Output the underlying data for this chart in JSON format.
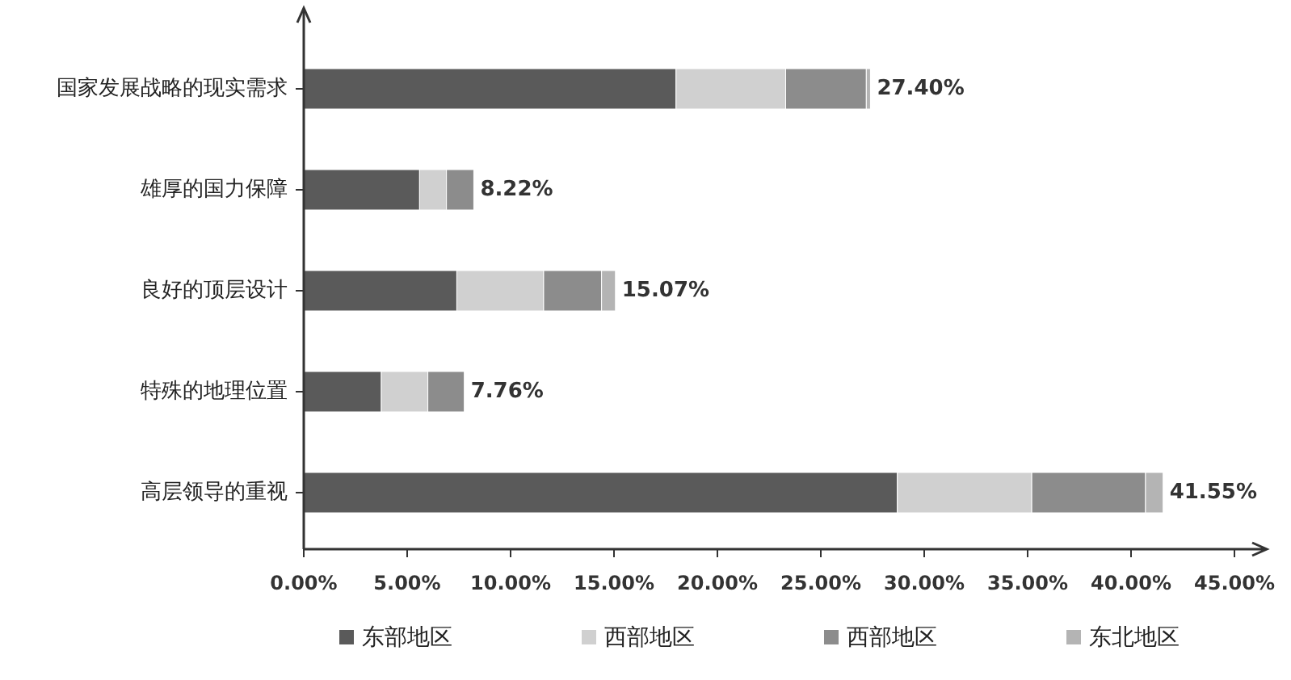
{
  "chart_data": {
    "type": "bar",
    "orientation": "horizontal",
    "stacked": true,
    "categories": [
      "国家发展战略的现实需求",
      "雄厚的国力保障",
      "良好的顶层设计",
      "特殊的地理位置",
      "高层领导的重视"
    ],
    "series": [
      {
        "name": "东部地区",
        "color": "#5a5a5a",
        "values": [
          18.0,
          5.6,
          7.4,
          3.75,
          28.7
        ]
      },
      {
        "name": "西部地区",
        "color": "#d0d0d0",
        "values": [
          5.3,
          1.3,
          4.2,
          2.25,
          6.5
        ]
      },
      {
        "name": "西部地区",
        "color": "#8c8c8c",
        "values": [
          3.9,
          1.32,
          2.8,
          1.76,
          5.5
        ]
      },
      {
        "name": "东北地区",
        "color": "#b4b4b4",
        "values": [
          0.2,
          null,
          0.67,
          null,
          0.85
        ]
      }
    ],
    "totals": [
      "27.40%",
      "8.22%",
      "15.07%",
      "7.76%",
      "41.55%"
    ],
    "xlim": [
      0,
      45
    ],
    "xticks": [
      {
        "value": 0,
        "label": "0.00%"
      },
      {
        "value": 5,
        "label": "5.00%"
      },
      {
        "value": 10,
        "label": "10.00%"
      },
      {
        "value": 15,
        "label": "15.00%"
      },
      {
        "value": 20,
        "label": "20.00%"
      },
      {
        "value": 25,
        "label": "25.00%"
      },
      {
        "value": 30,
        "label": "30.00%"
      },
      {
        "value": 35,
        "label": "35.00%"
      },
      {
        "value": 40,
        "label": "40.00%"
      },
      {
        "value": 45,
        "label": "45.00%"
      }
    ],
    "grid": false,
    "legend": "bottom"
  }
}
